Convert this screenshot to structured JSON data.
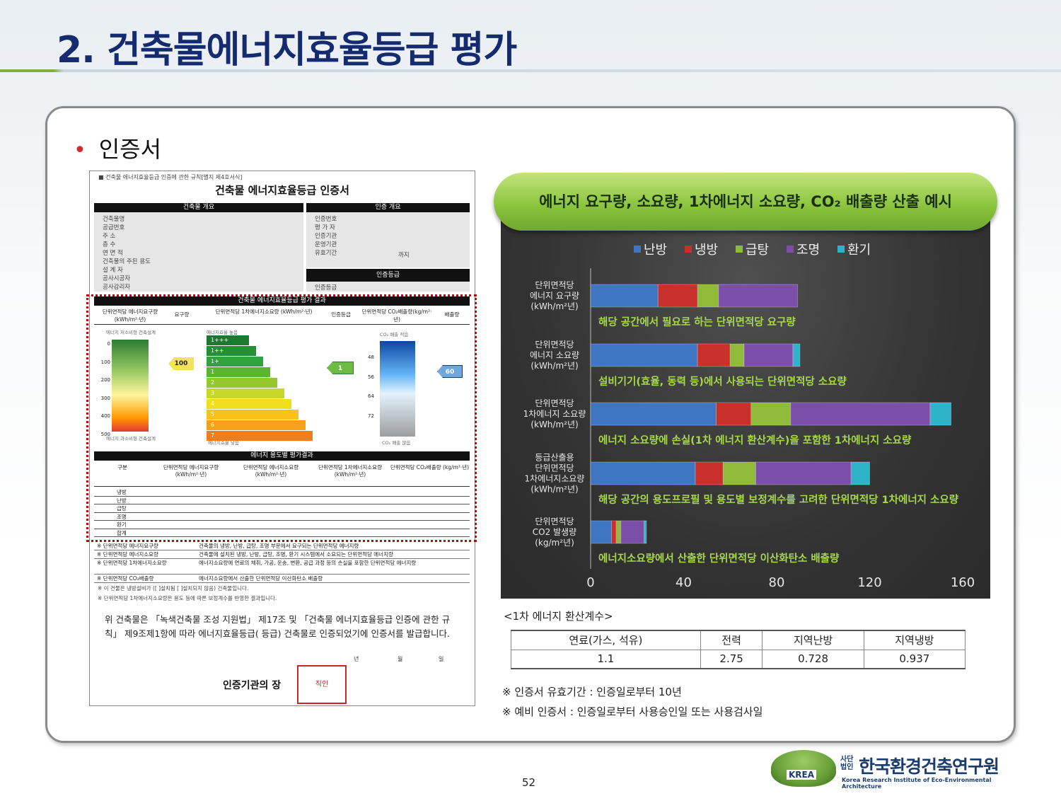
{
  "slide": {
    "title": "2. 건축물에너지효율등급 평가",
    "bullet": "인증서",
    "page_number": "52"
  },
  "certificate": {
    "top_note": "■ 건축물 에너지효율등급 인증에 관한 규칙[별지 제4호서식]",
    "title": "건축물 에너지효율등급 인증서",
    "section_overview": "건축물 개요",
    "section_cert_overview": "인증 개요",
    "overview_rows": [
      "건축물명",
      "공급번호",
      "주 소",
      "층 수",
      "연 면 적",
      "건축물의 주된 용도",
      "설 계 자",
      "공사시공자",
      "공사감리자"
    ],
    "cert_rows": [
      "인증번호",
      "평 가 자",
      "인증기관",
      "운영기관",
      "유효기간"
    ],
    "cert_until": "까지",
    "section_grade": "인증등급",
    "grade_row": "인증등급",
    "section_result": "건축물 에너지효율등급 평가 결과",
    "result_headers": [
      "단위면적당 에너지요구량(kWh/m²·년)",
      "요구량",
      "단위면적당 1차에너지소요량 (kWh/m²·년)",
      "인증등급",
      "단위면적당 CO₂배출량(kg/m²·년)",
      "배출량"
    ],
    "gauge_top": "에너지 저소비형 건축설계",
    "gauge_bottom": "에너지 과소비형 건축설계",
    "gauge_ticks": [
      "0",
      "100",
      "200",
      "300",
      "400",
      "500"
    ],
    "ladder_top": "에너지효율 높음",
    "ladder_bottom": "에너지효율 낮음",
    "ladder": [
      "1+++",
      "1++",
      "1+",
      "1",
      "2",
      "3",
      "4",
      "5",
      "6",
      "7"
    ],
    "requirement_value": "100",
    "grade_value": "1",
    "co2_value": "60",
    "co2_top": "CO₂ 배출 적음",
    "co2_bottom": "CO₂ 배출 많음",
    "co2_ticks": [
      "48",
      "56",
      "64",
      "72"
    ],
    "section_use": "에너지 용도별 평가결과",
    "use_headers": [
      "구분",
      "단위면적당 에너지요구량 (kWh/m²·년)",
      "단위면적당 에너지소요량 (kWh/m²·년)",
      "단위면적당 1차에너지소요량 (kWh/m²·년)",
      "단위면적당 CO₂배출량 (kg/m²·년)"
    ],
    "use_rows": [
      "냉방",
      "난방",
      "급탕",
      "조명",
      "환기",
      "합계"
    ],
    "definitions": [
      {
        "term": "※ 단위면적당 에너지요구량",
        "desc": "건축물의 냉방, 난방, 급탕, 조명 부문에서 요구되는 단위면적당 에너지량"
      },
      {
        "term": "※ 단위면적당 에너지소요량",
        "desc": "건축물에 설치된 냉방, 난방, 급탕, 조명, 환기 시스템에서 소요되는 단위면적당 에너지량"
      },
      {
        "term": "※ 단위면적당 1차에너지소요량",
        "desc": "에너지소요량에 연료의 채취, 가공, 운송, 변환, 공급 과정 등의 손실을 포함한 단위면적당 에너지량"
      },
      {
        "term": "※ 단위면적당 CO₂배출량",
        "desc": "에너지소요량에서 산출한 단위면적당 이산화탄소 배출량"
      }
    ],
    "footnote1": "※ 이 건물은 냉방설비가 ([ ]설치됨 [ ]설치되지 않음) 건축물입니다.",
    "footnote2": "※ 단위면적당 1차에너지소요량은 용도 등에 따른 보정계수를 반영한 결과입니다.",
    "body": "위 건축물은 「녹색건축물 조성 지원법」 제17조 및 「건축물 에너지효율등급 인증에 관한 규칙」 제9조제1항에 따라 에너지효율등급( 등급) 건축물로 인증되었기에 인증서를 발급합니다.",
    "date_labels": [
      "년",
      "월",
      "일"
    ],
    "stamp_label": "인증기관의 장",
    "stamp_text": "직인"
  },
  "chart_header": "에너지 요구량, 소요량, 1차에너지 소요량,  CO₂ 배출량 산출 예시",
  "chart_data": {
    "type": "bar",
    "orientation": "horizontal",
    "stacked": true,
    "categories": [
      "단위면적당 에너지 요구량 (kWh/m²년)",
      "단위면적당 에너지 소요량 (kWh/m²년)",
      "단위면적당 1차에너지 소요량 (kWh/m²년)",
      "등급산출용 단위면적당 1차에너지소요량 (kWh/m²년)",
      "단위면적당 CO2 발생량 (kg/m²년)"
    ],
    "category_lines": [
      [
        "단위면적당",
        "에너지 요구량",
        "(kWh/m²년)"
      ],
      [
        "단위면적당",
        "에너지 소요량",
        "(kWh/m²년)"
      ],
      [
        "단위면적당",
        "1차에너지 소요량",
        "(kWh/m²년)"
      ],
      [
        "등급산출용",
        "단위면적당",
        "1차에너지소요량",
        "(kWh/m²년)"
      ],
      [
        "단위면적당",
        "CO2 발생량",
        "(kg/m²년)"
      ]
    ],
    "series": [
      {
        "name": "난방",
        "values": [
          29,
          46,
          54,
          45,
          9
        ],
        "color": "#3f76c4"
      },
      {
        "name": "냉방",
        "values": [
          17,
          14,
          15,
          12,
          2
        ],
        "color": "#c9302c"
      },
      {
        "name": "급탕",
        "values": [
          9,
          6,
          17,
          14,
          2
        ],
        "color": "#8fba3a"
      },
      {
        "name": "조명",
        "values": [
          34,
          21,
          60,
          41,
          10
        ],
        "color": "#7b4fa8"
      },
      {
        "name": "환기",
        "values": [
          0,
          3,
          9,
          8,
          1
        ],
        "color": "#2fb3c8"
      }
    ],
    "annotations": [
      "해당 공간에서 필요로 하는 단위면적당 요구량",
      "설비기기(효율, 동력 등)에서 사용되는 단위면적당 소요량",
      "에너지 소요량에 손실(1차 에너지 환산계수)을 포함한 1차에너지 소요량",
      "해당 공간의 용도프로필 및 용도별 보정계수를 고려한 단위면적당 1차에너지 소요량",
      "에너지소요량에서 산출한 단위면적당 이산화탄소 배출량"
    ],
    "x_ticks": [
      "0",
      "40",
      "80",
      "120",
      "160"
    ],
    "xlim": [
      0,
      160
    ],
    "legend": "top-center",
    "grid": false
  },
  "coef_table": {
    "caption": "<1차 에너지 환산계수>",
    "headers": [
      "연료(가스, 석유)",
      "전력",
      "지역난방",
      "지역냉방"
    ],
    "values": [
      "1.1",
      "2.75",
      "0.728",
      "0.937"
    ]
  },
  "notes": [
    "※ 인증서 유효기간 : 인증일로부터 10년",
    "※ 예비 인증서 : 인증일로부터 사용승인일 또는 사용검사일"
  ],
  "logo": {
    "mark_text": "KREA",
    "small_text": "사단 법인",
    "name": "한국환경건축연구원",
    "english": "Korea Research Institute of Eco-Environmental Architecture"
  }
}
